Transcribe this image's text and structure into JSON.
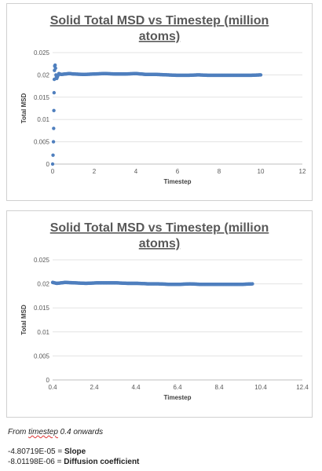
{
  "charts": [
    {
      "type": "scatter",
      "title_line1": "Solid Total MSD vs Timestep (million",
      "title_line2": "atoms)",
      "xlabel": "Timestep",
      "ylabel": "Total MSD",
      "xticks": [
        "0",
        "2",
        "4",
        "6",
        "8",
        "10",
        "12"
      ],
      "xtick_values": [
        0,
        2,
        4,
        6,
        8,
        10,
        12
      ],
      "yticks": [
        "0",
        "0.005",
        "0.01",
        "0.015",
        "0.02",
        "0.025"
      ],
      "xlim": [
        0,
        12
      ],
      "ylim": [
        0,
        0.025
      ],
      "marker_color": "#4f7fbe",
      "grid": "horizontal"
    },
    {
      "type": "scatter",
      "title_line1": "Solid Total MSD vs Timestep (million",
      "title_line2": "atoms)",
      "xlabel": "Timestep",
      "ylabel": "Total MSD",
      "xticks": [
        "0.4",
        "2.4",
        "4.4",
        "6.4",
        "8.4",
        "10.4",
        "12.4"
      ],
      "xtick_values": [
        0.4,
        2.4,
        4.4,
        6.4,
        8.4,
        10.4,
        12.4
      ],
      "yticks": [
        "0",
        "0.005",
        "0.01",
        "0.015",
        "0.02",
        "0.025"
      ],
      "xlim": [
        0.4,
        12.4
      ],
      "ylim": [
        0,
        0.025
      ],
      "marker_color": "#4f7fbe",
      "grid": "horizontal"
    }
  ],
  "chart_data": [
    {
      "type": "scatter",
      "title": "Solid Total MSD vs Timestep (million atoms)",
      "xlabel": "Timestep",
      "ylabel": "Total MSD",
      "xlim": [
        0,
        12
      ],
      "ylim": [
        0,
        0.025
      ],
      "series": [
        {
          "x": [
            0.0,
            0.02,
            0.04,
            0.05,
            0.06,
            0.07,
            0.08,
            0.09,
            0.1,
            0.12,
            0.14,
            0.16,
            0.18,
            0.2,
            0.25,
            0.3,
            0.4,
            0.6,
            0.8,
            1,
            1.5,
            2,
            2.5,
            3,
            3.5,
            4,
            4.5,
            5,
            5.5,
            6,
            6.5,
            7,
            7.5,
            8,
            8.5,
            9,
            9.5,
            10
          ],
          "y": [
            0.0,
            0.002,
            0.005,
            0.008,
            0.012,
            0.016,
            0.019,
            0.021,
            0.022,
            0.0222,
            0.0215,
            0.02,
            0.0195,
            0.0192,
            0.0198,
            0.0203,
            0.0201,
            0.0202,
            0.0203,
            0.0202,
            0.0201,
            0.0202,
            0.0203,
            0.0202,
            0.0202,
            0.0203,
            0.0201,
            0.0201,
            0.02,
            0.0199,
            0.0199,
            0.02,
            0.0199,
            0.0199,
            0.0199,
            0.0199,
            0.0199,
            0.02
          ]
        }
      ]
    },
    {
      "type": "scatter",
      "title": "Solid Total MSD vs Timestep (million atoms)",
      "xlabel": "Timestep",
      "ylabel": "Total MSD",
      "xlim": [
        0.4,
        12.4
      ],
      "ylim": [
        0,
        0.025
      ],
      "series": [
        {
          "x": [
            0.4,
            0.6,
            0.8,
            1.0,
            1.5,
            2.0,
            2.5,
            3.0,
            3.5,
            4.0,
            4.5,
            5.0,
            5.5,
            6.0,
            6.5,
            7.0,
            7.5,
            8.0,
            8.5,
            9.0,
            9.5,
            10.0
          ],
          "y": [
            0.0203,
            0.0201,
            0.0202,
            0.0203,
            0.0202,
            0.0201,
            0.0202,
            0.0202,
            0.0202,
            0.0201,
            0.0201,
            0.02,
            0.02,
            0.0199,
            0.0199,
            0.02,
            0.0199,
            0.0199,
            0.0199,
            0.0199,
            0.0199,
            0.02
          ]
        }
      ]
    }
  ],
  "notes": {
    "line1_prefix": "From ",
    "line1_word": "timestep",
    "line1_suffix": " 0.4 onwards",
    "slope_value": "-4.80719E-05 = ",
    "slope_label": "Slope",
    "diff_value": "-8.01198E-06 = ",
    "diff_label": "Diffusion coefficient"
  }
}
